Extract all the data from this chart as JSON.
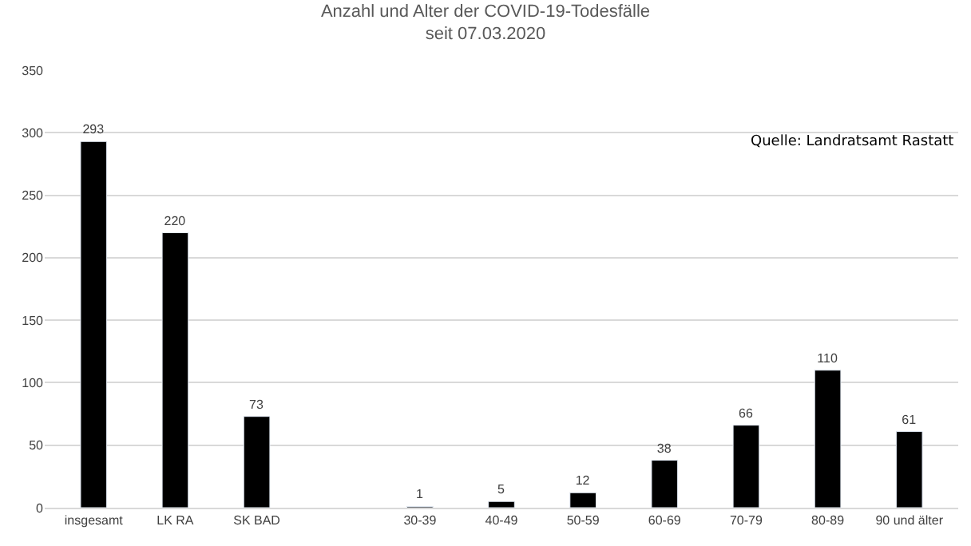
{
  "chart_data": {
    "type": "bar",
    "title": "Anzahl und Alter der COVID-19-Todesfälle",
    "subtitle": "seit 07.03.2020",
    "categories": [
      "insgesamt",
      "LK RA",
      "SK BAD",
      null,
      "30-39",
      "40-49",
      "50-59",
      "60-69",
      "70-79",
      "80-89",
      "90 und älter"
    ],
    "values": [
      293,
      220,
      73,
      null,
      1,
      5,
      12,
      38,
      66,
      110,
      61
    ],
    "color": "#000000",
    "ylim": [
      0,
      350
    ],
    "yticks": [
      0,
      50,
      100,
      150,
      200,
      250,
      300,
      350
    ],
    "grid": "y",
    "data_labels": true,
    "annotations": [
      "Quelle: Landratsamt Rastatt"
    ]
  }
}
